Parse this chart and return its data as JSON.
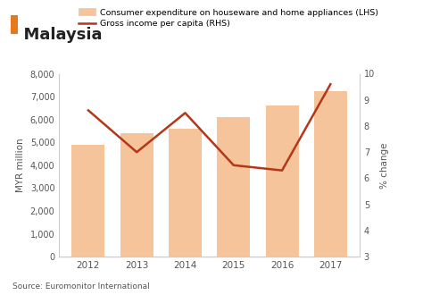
{
  "years": [
    2012,
    2013,
    2014,
    2015,
    2016,
    2017
  ],
  "bar_values": [
    4900,
    5400,
    5600,
    6100,
    6600,
    7250
  ],
  "line_values": [
    8.6,
    7.0,
    8.5,
    6.5,
    6.3,
    9.6
  ],
  "bar_color": "#f5c49a",
  "bar_edgecolor": "none",
  "line_color": "#b5371a",
  "title": "Malaysia",
  "title_icon_color": "#e8781e",
  "ylabel_left": "MYR million",
  "ylabel_right": "% change",
  "ylim_left": [
    0,
    8000
  ],
  "ylim_right": [
    3,
    10
  ],
  "yticks_left": [
    0,
    1000,
    2000,
    3000,
    4000,
    5000,
    6000,
    7000,
    8000
  ],
  "yticks_right": [
    3,
    4,
    5,
    6,
    7,
    8,
    9,
    10
  ],
  "legend_bar_label": "Consumer expenditure on houseware and home appliances (LHS)",
  "legend_line_label": "Gross income per capita (RHS)",
  "source_text": "Source: Euromonitor International",
  "background_color": "#ffffff",
  "plot_bg_color": "#ffffff",
  "line_width": 1.8,
  "spine_color": "#cccccc"
}
